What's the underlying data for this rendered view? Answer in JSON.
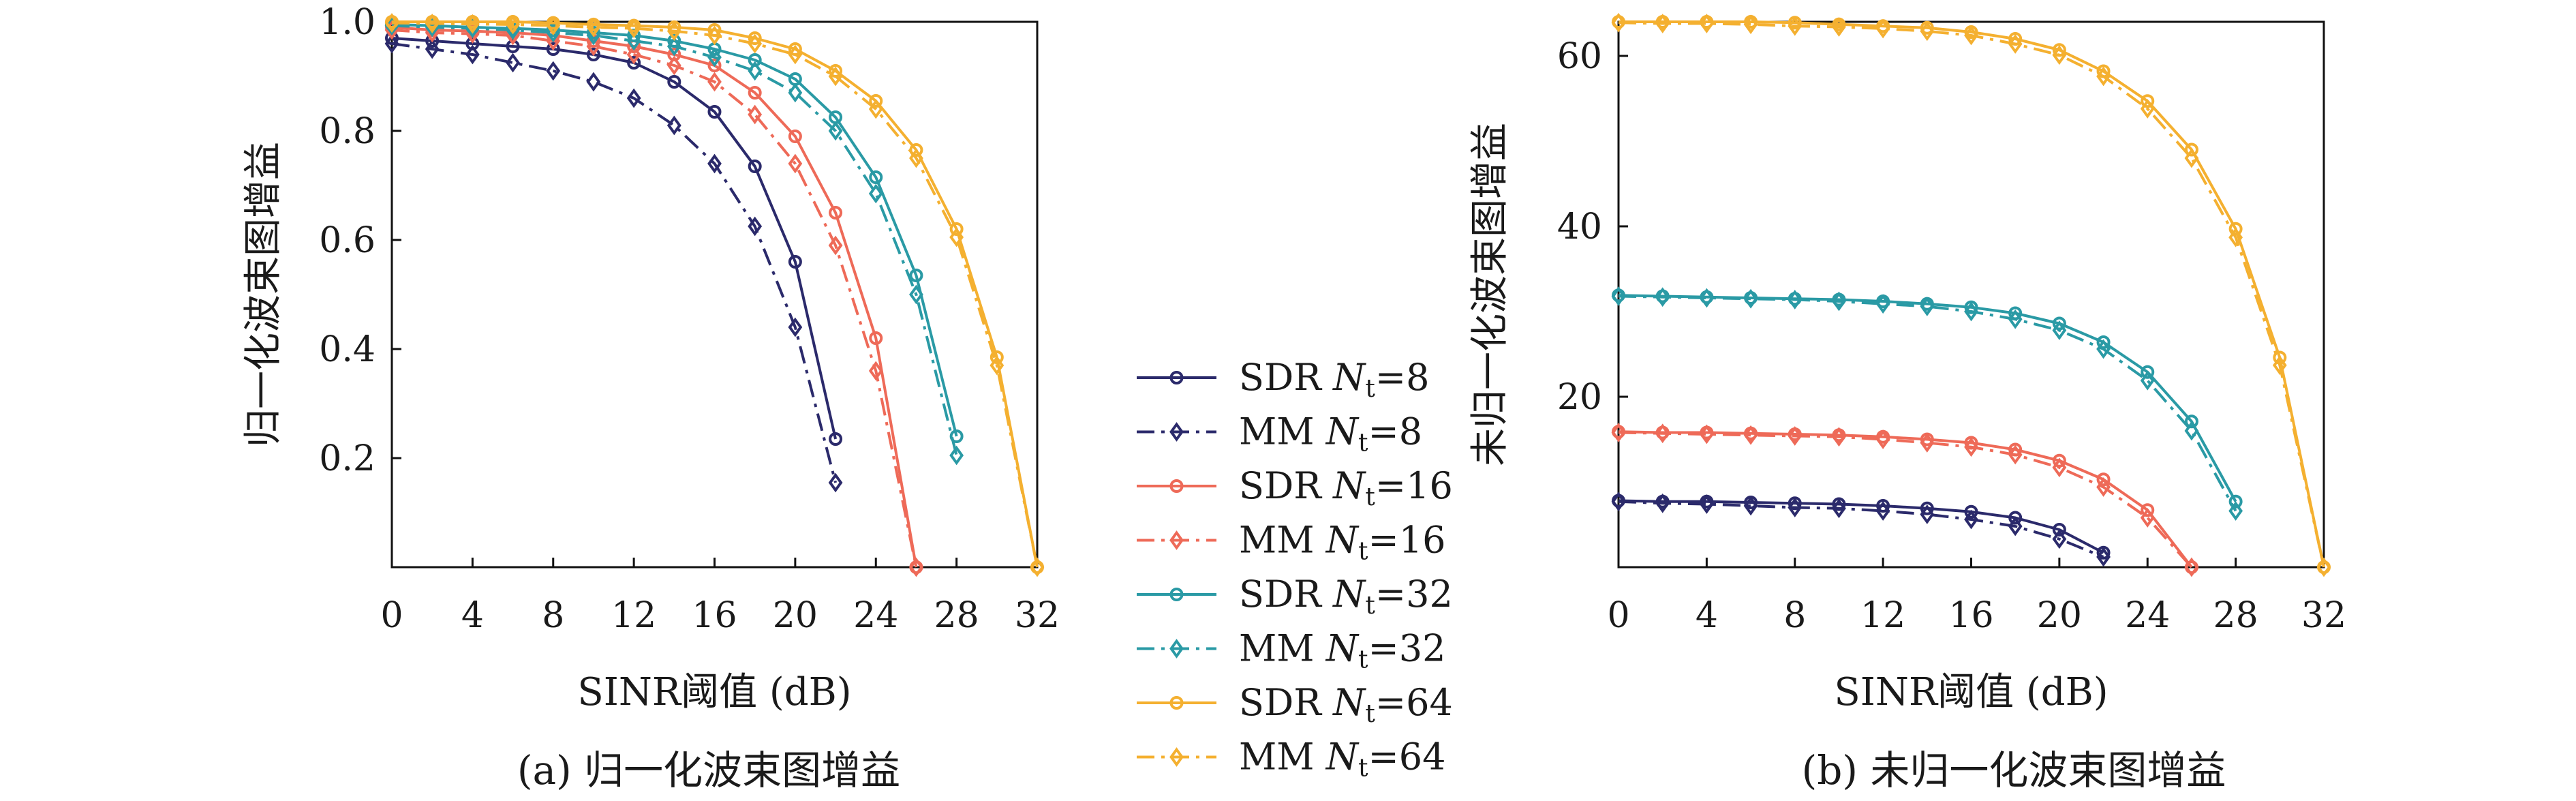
{
  "colors": {
    "n8": "#2b2a6b",
    "n16": "#ee6a58",
    "n32": "#2a9aa5",
    "n64": "#f4b030",
    "axis": "#111111"
  },
  "legend": [
    {
      "method": "SDR",
      "var": "N",
      "sub": "t",
      "value": "=8",
      "group": "n8",
      "marker": "circle",
      "dash": "solid"
    },
    {
      "method": "MM",
      "var": "N",
      "sub": "t",
      "value": "=8",
      "group": "n8",
      "marker": "diamond",
      "dash": "dashdot"
    },
    {
      "method": "SDR",
      "var": "N",
      "sub": "t",
      "value": "=16",
      "group": "n16",
      "marker": "circle",
      "dash": "solid"
    },
    {
      "method": "MM",
      "var": "N",
      "sub": "t",
      "value": "=16",
      "group": "n16",
      "marker": "diamond",
      "dash": "dashdot"
    },
    {
      "method": "SDR",
      "var": "N",
      "sub": "t",
      "value": "=32",
      "group": "n32",
      "marker": "circle",
      "dash": "solid"
    },
    {
      "method": "MM",
      "var": "N",
      "sub": "t",
      "value": "=32",
      "group": "n32",
      "marker": "diamond",
      "dash": "dashdot"
    },
    {
      "method": "SDR",
      "var": "N",
      "sub": "t",
      "value": "=64",
      "group": "n64",
      "marker": "circle",
      "dash": "solid"
    },
    {
      "method": "MM",
      "var": "N",
      "sub": "t",
      "value": "=64",
      "group": "n64",
      "marker": "diamond",
      "dash": "dashdot"
    }
  ],
  "chart_data": [
    {
      "id": "a",
      "type": "line",
      "caption": "(a) 归一化波束图增益",
      "xlabel": "SINR阈值 (dB)",
      "ylabel": "归一化波束图增益",
      "xlim": [
        0,
        32
      ],
      "ylim": [
        0,
        1.0
      ],
      "xticks": [
        "0",
        "4",
        "8",
        "12",
        "16",
        "20",
        "24",
        "28",
        "32"
      ],
      "yticks": [
        {
          "value": 0.2,
          "label": "0.2"
        },
        {
          "value": 0.4,
          "label": "0.4"
        },
        {
          "value": 0.6,
          "label": "0.6"
        },
        {
          "value": 0.8,
          "label": "0.8"
        },
        {
          "value": 1.0,
          "label": "1.0"
        }
      ],
      "series": [
        {
          "legend": 0,
          "x": [
            0,
            2,
            4,
            6,
            8,
            10,
            12,
            14,
            16,
            18,
            20,
            22
          ],
          "y": [
            0.97,
            0.965,
            0.96,
            0.955,
            0.95,
            0.94,
            0.925,
            0.89,
            0.835,
            0.735,
            0.56,
            0.235
          ]
        },
        {
          "legend": 1,
          "x": [
            0,
            2,
            4,
            6,
            8,
            10,
            12,
            14,
            16,
            18,
            20,
            22
          ],
          "y": [
            0.96,
            0.95,
            0.94,
            0.925,
            0.91,
            0.89,
            0.86,
            0.81,
            0.74,
            0.625,
            0.44,
            0.155
          ]
        },
        {
          "legend": 2,
          "x": [
            0,
            2,
            4,
            6,
            8,
            10,
            12,
            14,
            16,
            18,
            20,
            22,
            24,
            26
          ],
          "y": [
            0.99,
            0.985,
            0.983,
            0.98,
            0.975,
            0.965,
            0.955,
            0.94,
            0.92,
            0.87,
            0.79,
            0.65,
            0.42,
            0.0
          ]
        },
        {
          "legend": 3,
          "x": [
            0,
            2,
            4,
            6,
            8,
            10,
            12,
            14,
            16,
            18,
            20,
            22,
            24,
            26
          ],
          "y": [
            0.985,
            0.98,
            0.978,
            0.975,
            0.965,
            0.955,
            0.94,
            0.92,
            0.89,
            0.83,
            0.74,
            0.59,
            0.36,
            0.0
          ]
        },
        {
          "legend": 4,
          "x": [
            0,
            2,
            4,
            6,
            8,
            10,
            12,
            14,
            16,
            18,
            20,
            22,
            24,
            26,
            28
          ],
          "y": [
            0.995,
            0.993,
            0.99,
            0.988,
            0.985,
            0.98,
            0.975,
            0.965,
            0.95,
            0.93,
            0.895,
            0.825,
            0.715,
            0.535,
            0.24
          ]
        },
        {
          "legend": 5,
          "x": [
            0,
            2,
            4,
            6,
            8,
            10,
            12,
            14,
            16,
            18,
            20,
            22,
            24,
            26,
            28
          ],
          "y": [
            0.993,
            0.99,
            0.988,
            0.985,
            0.98,
            0.975,
            0.965,
            0.955,
            0.935,
            0.91,
            0.87,
            0.8,
            0.685,
            0.5,
            0.205
          ]
        },
        {
          "legend": 6,
          "x": [
            0,
            2,
            4,
            6,
            8,
            10,
            12,
            14,
            16,
            18,
            20,
            22,
            24,
            26,
            28,
            30,
            32
          ],
          "y": [
            1.0,
            1.0,
            1.0,
            1.0,
            0.998,
            0.995,
            0.993,
            0.99,
            0.985,
            0.97,
            0.95,
            0.91,
            0.855,
            0.765,
            0.62,
            0.385,
            0.0
          ]
        },
        {
          "legend": 7,
          "x": [
            0,
            2,
            4,
            6,
            8,
            10,
            12,
            14,
            16,
            18,
            20,
            22,
            24,
            26,
            28,
            30,
            32
          ],
          "y": [
            0.998,
            0.997,
            0.996,
            0.995,
            0.993,
            0.99,
            0.988,
            0.983,
            0.975,
            0.96,
            0.94,
            0.9,
            0.84,
            0.75,
            0.605,
            0.37,
            0.0
          ]
        }
      ]
    },
    {
      "id": "b",
      "type": "line",
      "caption": "(b) 未归一化波束图增益",
      "xlabel": "SINR阈值 (dB)",
      "ylabel": "未归一化波束图增益",
      "xlim": [
        0,
        32
      ],
      "ylim": [
        0,
        64
      ],
      "xticks": [
        "0",
        "4",
        "8",
        "12",
        "16",
        "20",
        "24",
        "28",
        "32"
      ],
      "yticks": [
        {
          "value": 20,
          "label": "20"
        },
        {
          "value": 40,
          "label": "40"
        },
        {
          "value": 60,
          "label": "60"
        }
      ],
      "series": [
        {
          "legend": 0,
          "x": [
            0,
            2,
            4,
            6,
            8,
            10,
            12,
            14,
            16,
            18,
            20,
            22
          ],
          "y": [
            7.8,
            7.7,
            7.7,
            7.6,
            7.5,
            7.4,
            7.2,
            6.9,
            6.5,
            5.8,
            4.4,
            1.7
          ]
        },
        {
          "legend": 1,
          "x": [
            0,
            2,
            4,
            6,
            8,
            10,
            12,
            14,
            16,
            18,
            20,
            22
          ],
          "y": [
            7.7,
            7.5,
            7.4,
            7.2,
            7.0,
            6.9,
            6.6,
            6.2,
            5.6,
            4.8,
            3.3,
            1.2
          ]
        },
        {
          "legend": 2,
          "x": [
            0,
            2,
            4,
            6,
            8,
            10,
            12,
            14,
            16,
            18,
            20,
            22,
            24,
            26
          ],
          "y": [
            15.9,
            15.8,
            15.8,
            15.7,
            15.6,
            15.5,
            15.3,
            15.0,
            14.6,
            13.8,
            12.5,
            10.3,
            6.7,
            0.0
          ]
        },
        {
          "legend": 3,
          "x": [
            0,
            2,
            4,
            6,
            8,
            10,
            12,
            14,
            16,
            18,
            20,
            22,
            24,
            26
          ],
          "y": [
            15.8,
            15.7,
            15.6,
            15.5,
            15.4,
            15.3,
            15.0,
            14.6,
            14.1,
            13.2,
            11.7,
            9.4,
            5.8,
            0.0
          ]
        },
        {
          "legend": 4,
          "x": [
            0,
            2,
            4,
            6,
            8,
            10,
            12,
            14,
            16,
            18,
            20,
            22,
            24,
            26,
            28
          ],
          "y": [
            31.9,
            31.8,
            31.7,
            31.6,
            31.5,
            31.4,
            31.2,
            30.9,
            30.5,
            29.8,
            28.6,
            26.4,
            22.9,
            17.1,
            7.7
          ]
        },
        {
          "legend": 5,
          "x": [
            0,
            2,
            4,
            6,
            8,
            10,
            12,
            14,
            16,
            18,
            20,
            22,
            24,
            26,
            28
          ],
          "y": [
            31.8,
            31.7,
            31.6,
            31.5,
            31.4,
            31.2,
            30.9,
            30.6,
            30.0,
            29.1,
            27.8,
            25.6,
            21.9,
            16.0,
            6.6
          ]
        },
        {
          "legend": 6,
          "x": [
            0,
            2,
            4,
            6,
            8,
            10,
            12,
            14,
            16,
            18,
            20,
            22,
            24,
            26,
            28,
            30,
            32
          ],
          "y": [
            64.0,
            64.0,
            64.0,
            64.0,
            63.9,
            63.7,
            63.5,
            63.3,
            62.8,
            62.0,
            60.7,
            58.2,
            54.7,
            49.0,
            39.7,
            24.6,
            0.0
          ]
        },
        {
          "legend": 7,
          "x": [
            0,
            2,
            4,
            6,
            8,
            10,
            12,
            14,
            16,
            18,
            20,
            22,
            24,
            26,
            28,
            30,
            32
          ],
          "y": [
            63.9,
            63.8,
            63.8,
            63.7,
            63.5,
            63.4,
            63.2,
            62.9,
            62.4,
            61.4,
            60.1,
            57.6,
            53.8,
            48.0,
            38.7,
            23.7,
            0.0
          ]
        }
      ]
    }
  ]
}
